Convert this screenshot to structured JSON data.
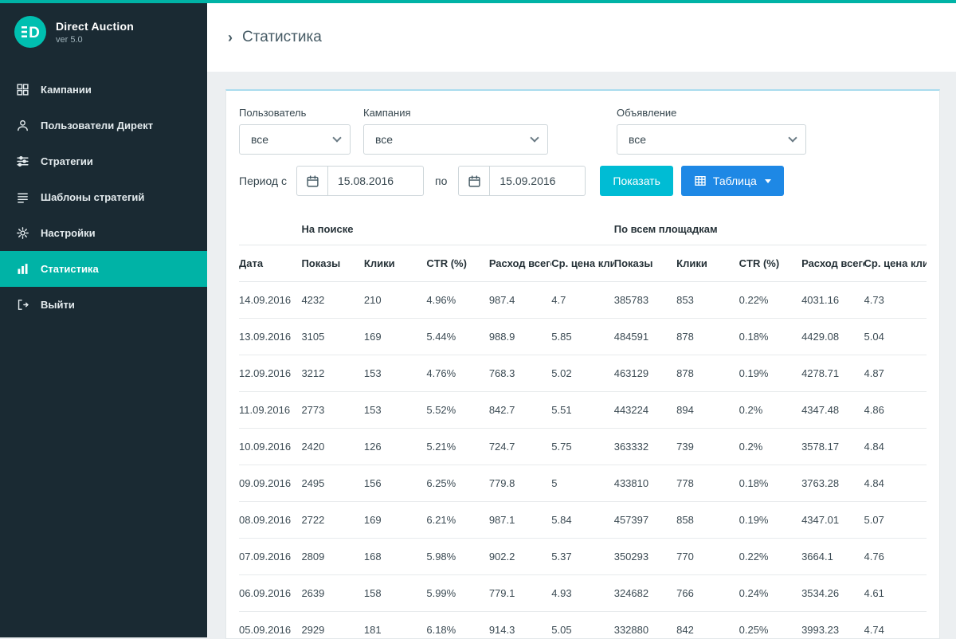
{
  "colors": {
    "accent": "#00b3a6",
    "sidebar_bg": "#1a2a33",
    "show_button": "#00bcd4",
    "table_button": "#1e88e5"
  },
  "app": {
    "brand": "Direct Auction",
    "version": "ver 5.0"
  },
  "sidebar": {
    "items": [
      {
        "id": "campaigns",
        "label": "Кампании",
        "icon": "grid-icon",
        "active": false
      },
      {
        "id": "direct-users",
        "label": "Пользователи Директ",
        "icon": "user-icon",
        "active": false
      },
      {
        "id": "strategies",
        "label": "Стратегии",
        "icon": "sliders-icon",
        "active": false
      },
      {
        "id": "strategy-templates",
        "label": "Шаблоны стратегий",
        "icon": "list-icon",
        "active": false
      },
      {
        "id": "settings",
        "label": "Настройки",
        "icon": "gear-icon",
        "active": false
      },
      {
        "id": "statistics",
        "label": "Статистика",
        "icon": "bar-chart-icon",
        "active": true
      },
      {
        "id": "logout",
        "label": "Выйти",
        "icon": "logout-icon",
        "active": false
      }
    ]
  },
  "header": {
    "title": "Статистика"
  },
  "filters": {
    "user_label": "Пользователь",
    "user_value": "все",
    "campaign_label": "Кампания",
    "campaign_value": "все",
    "ad_label": "Объявление",
    "ad_value": "все",
    "period_label": "Период с",
    "date_from": "15.08.2016",
    "to_label": "по",
    "date_to": "15.09.2016",
    "show_button": "Показать",
    "table_button": "Таблица"
  },
  "table": {
    "groups": [
      {
        "label": "",
        "span": 1
      },
      {
        "label": "На поиске",
        "span": 5
      },
      {
        "label": "По всем площадкам",
        "span": 5
      }
    ],
    "columns": [
      "Дата",
      "Показы",
      "Клики",
      "CTR (%)",
      "Расход всего",
      "Ср. цена клика",
      "Показы",
      "Клики",
      "CTR (%)",
      "Расход всего",
      "Ср. цена клика"
    ],
    "rows": [
      [
        "14.09.2016",
        "4232",
        "210",
        "4.96%",
        "987.4",
        "4.7",
        "385783",
        "853",
        "0.22%",
        "4031.16",
        "4.73"
      ],
      [
        "13.09.2016",
        "3105",
        "169",
        "5.44%",
        "988.9",
        "5.85",
        "484591",
        "878",
        "0.18%",
        "4429.08",
        "5.04"
      ],
      [
        "12.09.2016",
        "3212",
        "153",
        "4.76%",
        "768.3",
        "5.02",
        "463129",
        "878",
        "0.19%",
        "4278.71",
        "4.87"
      ],
      [
        "11.09.2016",
        "2773",
        "153",
        "5.52%",
        "842.7",
        "5.51",
        "443224",
        "894",
        "0.2%",
        "4347.48",
        "4.86"
      ],
      [
        "10.09.2016",
        "2420",
        "126",
        "5.21%",
        "724.7",
        "5.75",
        "363332",
        "739",
        "0.2%",
        "3578.17",
        "4.84"
      ],
      [
        "09.09.2016",
        "2495",
        "156",
        "6.25%",
        "779.8",
        "5",
        "433810",
        "778",
        "0.18%",
        "3763.28",
        "4.84"
      ],
      [
        "08.09.2016",
        "2722",
        "169",
        "6.21%",
        "987.1",
        "5.84",
        "457397",
        "858",
        "0.19%",
        "4347.01",
        "5.07"
      ],
      [
        "07.09.2016",
        "2809",
        "168",
        "5.98%",
        "902.2",
        "5.37",
        "350293",
        "770",
        "0.22%",
        "3664.1",
        "4.76"
      ],
      [
        "06.09.2016",
        "2639",
        "158",
        "5.99%",
        "779.1",
        "4.93",
        "324682",
        "766",
        "0.24%",
        "3534.26",
        "4.61"
      ],
      [
        "05.09.2016",
        "2929",
        "181",
        "6.18%",
        "914.3",
        "5.05",
        "332880",
        "842",
        "0.25%",
        "3993.23",
        "4.74"
      ]
    ]
  }
}
